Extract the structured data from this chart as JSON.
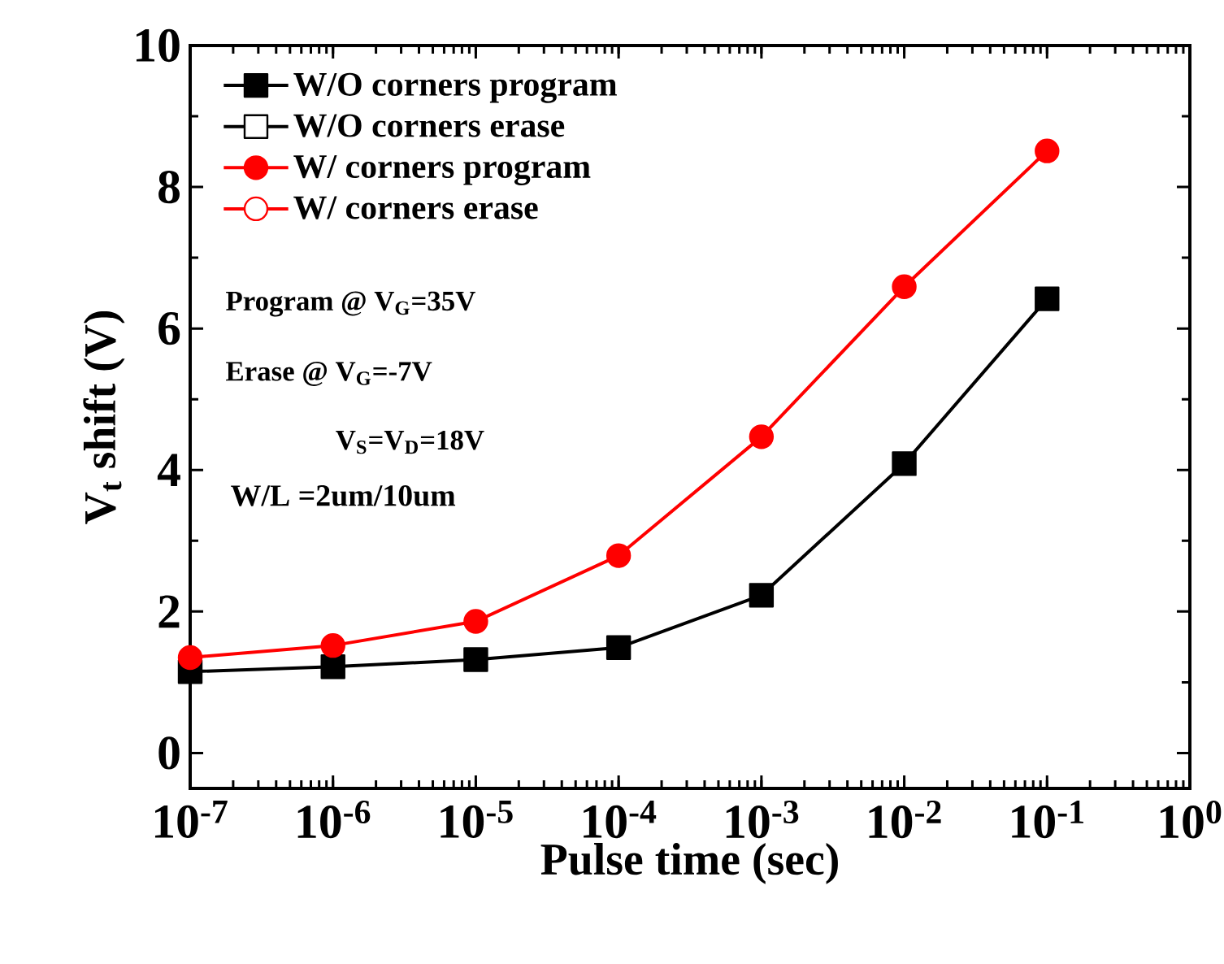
{
  "chart_data": {
    "type": "line",
    "xlabel": "Pulse time (sec)",
    "ylabel": "V$_{t}$ shift (V)",
    "x": [
      1e-07,
      1e-06,
      1e-05,
      0.0001,
      0.001,
      0.01,
      0.1
    ],
    "series": [
      {
        "name": "W/O corners program",
        "color": "#000000",
        "marker": "square",
        "values": [
          1.15,
          1.22,
          1.32,
          1.49,
          2.23,
          4.09,
          6.42
        ]
      },
      {
        "name": "W/O corners erase",
        "color": "#000000",
        "marker": "square",
        "values": [
          null,
          null,
          null,
          null,
          null,
          null,
          null
        ]
      },
      {
        "name": "W/  corners program",
        "color": "#ff0000",
        "marker": "circle",
        "values": [
          1.35,
          1.52,
          1.86,
          2.79,
          4.47,
          6.59,
          8.51
        ]
      },
      {
        "name": "W/  corners erase",
        "color": "#ff0000",
        "marker": "circle",
        "values": [
          null,
          null,
          null,
          null,
          null,
          null,
          null
        ]
      }
    ],
    "log": "x",
    "xlim": [
      1e-07,
      1
    ],
    "ylim": [
      -0.5,
      10
    ],
    "xticks": [
      {
        "value": 1e-07,
        "label": "10$^{-7}$"
      },
      {
        "value": 1e-06,
        "label": "10$^{-6}$"
      },
      {
        "value": 1e-05,
        "label": "10$^{-5}$"
      },
      {
        "value": 0.0001,
        "label": "10$^{-4}$"
      },
      {
        "value": 0.001,
        "label": "10$^{-3}$"
      },
      {
        "value": 0.01,
        "label": "10$^{-2}$"
      },
      {
        "value": 0.1,
        "label": "10$^{-1}$"
      },
      {
        "value": 1,
        "label": "10$^{0}$"
      }
    ],
    "yticks": [
      0,
      2,
      4,
      6,
      8,
      10
    ],
    "legend": "top left",
    "grid": false,
    "line_style": "solid",
    "annotations": [
      "Program @ V$_{G}$=35V",
      "Erase @ V$_{G}$=-7V",
      "V$_{S}$=V$_{D}$=18V",
      "W/L =2um/10um"
    ]
  }
}
